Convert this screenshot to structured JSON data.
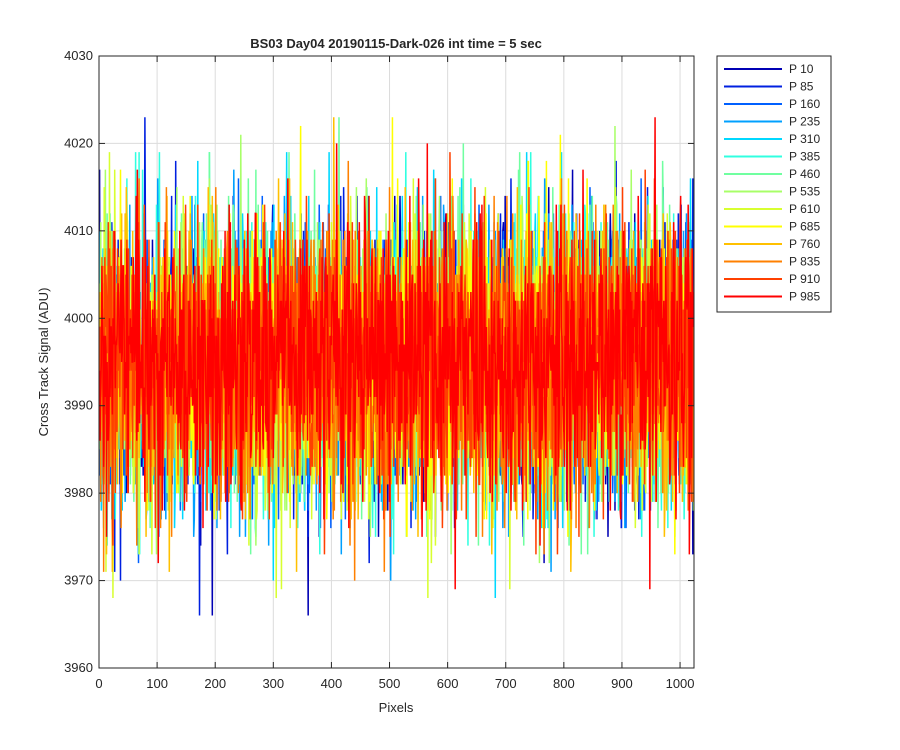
{
  "chart_data": {
    "type": "line",
    "title": "BS03 Day04 20190115-Dark-026 int time = 5 sec",
    "xlabel": "Pixels",
    "ylabel": "Cross Track Signal (ADU)",
    "xlim": [
      0,
      1024
    ],
    "ylim": [
      3960,
      4030
    ],
    "x_ticks": [
      0,
      100,
      200,
      300,
      400,
      500,
      600,
      700,
      800,
      900,
      1000
    ],
    "y_ticks": [
      3960,
      3970,
      3980,
      3990,
      4000,
      4010,
      4020,
      4030
    ],
    "grid": true,
    "legend_position": "outside-top-right",
    "x": "pixel index 1..1024 (one sample per pixel)",
    "series": [
      {
        "name": "P 10",
        "color": "#0000b4",
        "mean": 3995,
        "std": 8,
        "min": 3966,
        "max": 4029
      },
      {
        "name": "P 85",
        "color": "#0020e0",
        "mean": 3995,
        "std": 8,
        "min": 3966,
        "max": 4024
      },
      {
        "name": "P 160",
        "color": "#0060ff",
        "mean": 3995,
        "std": 8,
        "min": 3968,
        "max": 4022
      },
      {
        "name": "P 235",
        "color": "#00a0ff",
        "mean": 3995,
        "std": 8,
        "min": 3964,
        "max": 4022
      },
      {
        "name": "P 310",
        "color": "#00d8ff",
        "mean": 3995,
        "std": 8,
        "min": 3965,
        "max": 4019
      },
      {
        "name": "P 385",
        "color": "#30ffe0",
        "mean": 3995,
        "std": 8,
        "min": 3968,
        "max": 4019
      },
      {
        "name": "P 460",
        "color": "#70ffa0",
        "mean": 3995,
        "std": 8,
        "min": 3962,
        "max": 4023
      },
      {
        "name": "P 535",
        "color": "#a8ff68",
        "mean": 3995,
        "std": 8,
        "min": 3967,
        "max": 4026
      },
      {
        "name": "P 610",
        "color": "#d8ff30",
        "mean": 3995,
        "std": 8,
        "min": 3968,
        "max": 4021
      },
      {
        "name": "P 685",
        "color": "#ffff00",
        "mean": 3995,
        "std": 8,
        "min": 3968,
        "max": 4029
      },
      {
        "name": "P 760",
        "color": "#ffc000",
        "mean": 3995,
        "std": 8,
        "min": 3966,
        "max": 4023
      },
      {
        "name": "P 835",
        "color": "#ff8000",
        "mean": 3995,
        "std": 8,
        "min": 3967,
        "max": 4025
      },
      {
        "name": "P 910",
        "color": "#ff4000",
        "mean": 3995,
        "std": 8,
        "min": 3968,
        "max": 4022
      },
      {
        "name": "P 985",
        "color": "#ff0000",
        "mean": 3995,
        "std": 8,
        "min": 3964,
        "max": 4024
      }
    ]
  }
}
